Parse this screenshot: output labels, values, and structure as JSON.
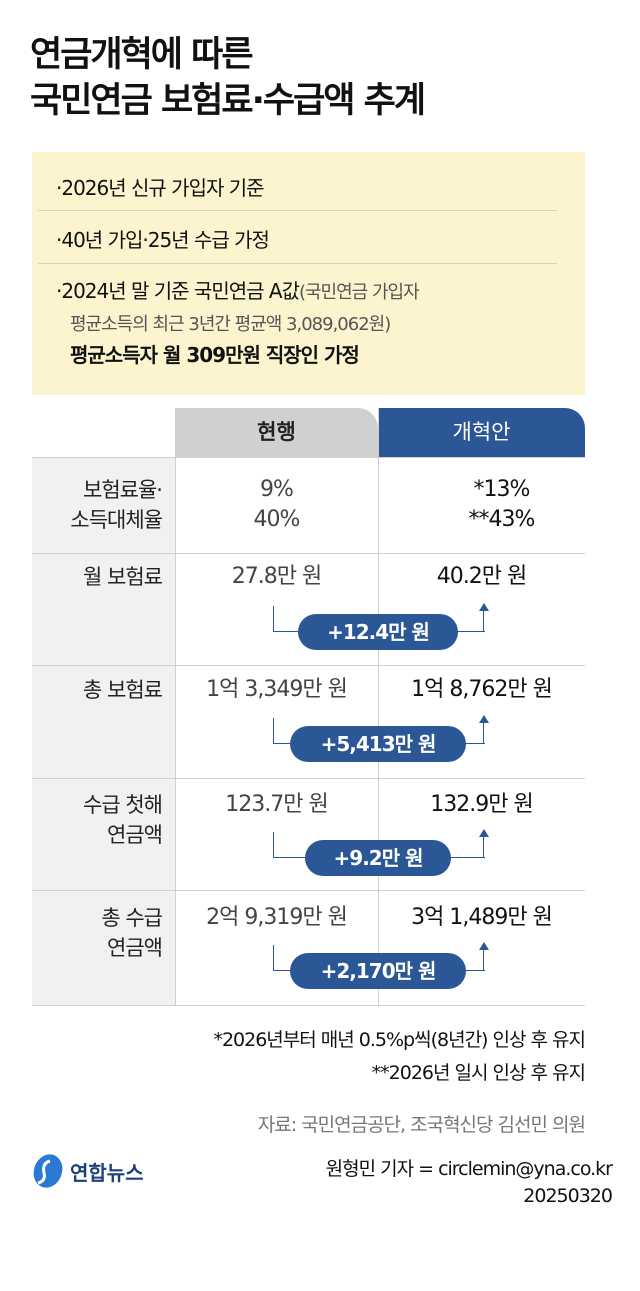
{
  "title": {
    "line1": "연금개혁에 따른",
    "line2": "국민연금 보험료·수급액 추계"
  },
  "notes": {
    "n1": "·2026년 신규 가입자 기준",
    "n2": "·40년 가입·25년 수급 가정",
    "n3_bold": "·2024년 말 기준 국민연금 A값",
    "n3_paren": "(국민연금 가입자",
    "n3_line2": "평균소득의 최근 3년간 평균액 3,089,062원)",
    "n3_line3": "평균소득자 월 309만원 직장인 가정"
  },
  "table": {
    "headers": [
      "현행",
      "개혁안"
    ],
    "colors": {
      "current_header": "#d0d0d0",
      "reform_header": "#2b5797",
      "pill": "#2b5797",
      "note_bg": "#fbf4cf"
    },
    "rows": [
      {
        "label1": "보험료율·",
        "label2": "소득대체율",
        "current1": "9%",
        "current2": "40%",
        "reform1": "*13%",
        "reform2": "**43%"
      },
      {
        "label1": "월 보험료",
        "current": "27.8만 원",
        "reform": "40.2만 원",
        "diff": "+12.4만 원"
      },
      {
        "label1": "총 보험료",
        "current": "1억 3,349만 원",
        "reform": "1억 8,762만 원",
        "diff": "+5,413만 원"
      },
      {
        "label1": "수급 첫해",
        "label2": "연금액",
        "current": "123.7만 원",
        "reform": "132.9만 원",
        "diff": "+9.2만 원"
      },
      {
        "label1": "총 수급",
        "label2": "연금액",
        "current": "2억 9,319만 원",
        "reform": "3억 1,489만 원",
        "diff": "+2,170만 원"
      }
    ]
  },
  "footnotes": {
    "f1": "*2026년부터 매년 0.5%p씩(8년간) 인상 후 유지",
    "f2": "**2026년 일시 인상 후 유지"
  },
  "source": "자료: 국민연금공단, 조국혁신당 김선민 의원",
  "logo": "연합뉴스",
  "credit": "원형민 기자 = circlemin@yna.co.kr",
  "date": "20250320"
}
